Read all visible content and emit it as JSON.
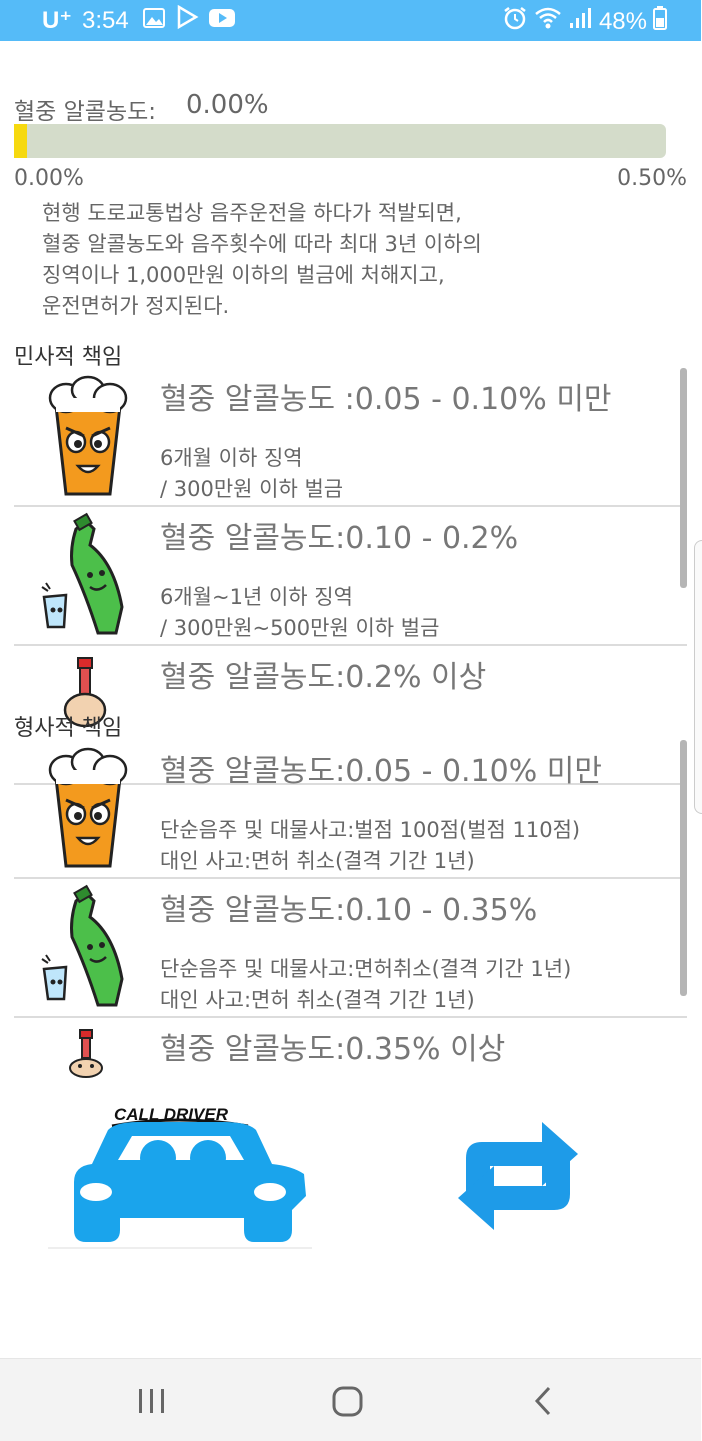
{
  "status_bar": {
    "carrier": "U⁺",
    "time": "3:54",
    "battery": "48%",
    "icons_left": [
      "gallery-icon",
      "play-store-icon",
      "youtube-icon"
    ],
    "icons_right": [
      "alarm-icon",
      "wifi-icon",
      "signal-icon",
      "battery-icon"
    ]
  },
  "bac": {
    "label": "혈중 알콜농도:",
    "value": "0.00%",
    "progress_fraction": 0.02,
    "min_label": "0.00%",
    "max_label": "0.50%"
  },
  "colors": {
    "status_bar": "#55bbf8",
    "progress_track": "#d4dcca",
    "progress_fill": "#f6d90f",
    "accent_blue": "#1e9be8"
  },
  "notice": [
    "현행 도로교통법상 음주운전을 하다가 적발되면,",
    "혈중 알콜농도와 음주횟수에 따라 최대 3년 이하의",
    "징역이나 1,000만원 이하의 벌금에 처해지고,",
    "운전면허가 정지된다."
  ],
  "civil": {
    "title": "민사적 책임",
    "items": [
      {
        "icon": "beer-glass-icon",
        "title": "혈중 알콜농도 :0.05 - 0.10% 미만",
        "line1": "6개월 이하 징역",
        "line2": "/ 300만원 이하 벌금"
      },
      {
        "icon": "soju-bottle-icon",
        "title": "혈중 알콜농도:0.10 - 0.2%",
        "line1": "6개월~1년 이하 징역",
        "line2": "/ 300만원~500만원 이하 벌금"
      },
      {
        "icon": "drunk-person-icon",
        "title": "혈중 알콜농도:0.2% 이상",
        "line1": "",
        "line2": ""
      }
    ]
  },
  "criminal": {
    "title": "형사적 책임",
    "items": [
      {
        "icon": "beer-glass-icon",
        "title": "혈중 알콜농도:0.05 - 0.10% 미만",
        "line1": "단순음주 및 대물사고:벌점 100점(벌점 110점)",
        "line2": "대인 사고:면허 취소(결격 기간 1년)"
      },
      {
        "icon": "soju-bottle-icon",
        "title": "혈중 알콜농도:0.10 - 0.35%",
        "line1": "단순음주 및 대물사고:면허취소(결격 기간 1년)",
        "line2": "대인 사고:면허 취소(결격 기간 1년)"
      },
      {
        "icon": "drunk-person-icon",
        "title": "혈중 알콜농도:0.35% 이상",
        "line1": "",
        "line2": ""
      }
    ]
  },
  "buttons": {
    "call_driver_text": "CALL DRIVER",
    "call_driver_icon": "car-icon",
    "refresh_icon": "refresh-icon"
  },
  "nav_bar": {
    "icons": [
      "recent-apps-icon",
      "home-icon",
      "back-icon"
    ]
  }
}
